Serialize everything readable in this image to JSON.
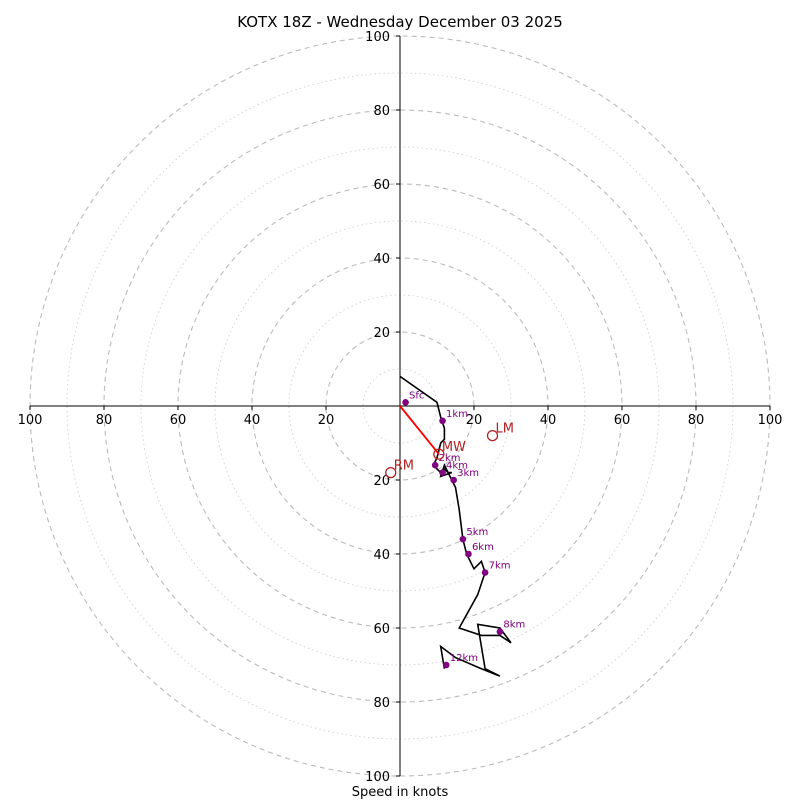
{
  "chart_data": {
    "type": "hodograph",
    "title": "KOTX 18Z - Wednesday December 03 2025",
    "xlabel": "Speed in knots",
    "range": [
      -100,
      100
    ],
    "ring_major_step": 20,
    "ring_minor_step": 10,
    "axis_ticks": {
      "right": [
        "20",
        "40",
        "60",
        "80",
        "100"
      ],
      "left": [
        "20",
        "40",
        "60",
        "80",
        "100"
      ],
      "up": [
        "20",
        "40",
        "60",
        "80",
        "100"
      ],
      "down": [
        "20",
        "40",
        "60",
        "80",
        "100"
      ]
    },
    "colors": {
      "trace": "#000000",
      "height_marker": "#800080",
      "storm_motion": "#b22222",
      "mean_wind_vector": "#ff0000",
      "ring": "#bbbbbb",
      "axis": "#000000"
    },
    "hodograph_trace": [
      [
        0,
        8
      ],
      [
        10,
        1
      ],
      [
        11,
        -3
      ],
      [
        12,
        -6
      ],
      [
        12,
        -9
      ],
      [
        11,
        -10
      ],
      [
        10,
        -14
      ],
      [
        9,
        -16
      ],
      [
        10,
        -17
      ],
      [
        11,
        -18
      ],
      [
        12,
        -17
      ],
      [
        13,
        -18
      ],
      [
        14,
        -18
      ],
      [
        11,
        -19
      ],
      [
        12,
        -16
      ],
      [
        14,
        -20
      ],
      [
        15,
        -22
      ],
      [
        16,
        -28
      ],
      [
        17,
        -36
      ],
      [
        18,
        -40
      ],
      [
        20,
        -44
      ],
      [
        22,
        -42
      ],
      [
        23,
        -45
      ],
      [
        21,
        -51
      ],
      [
        16,
        -60
      ],
      [
        22,
        -62
      ],
      [
        27,
        -62
      ],
      [
        30,
        -64
      ],
      [
        27,
        -60
      ],
      [
        21,
        -59
      ],
      [
        23,
        -71
      ],
      [
        27,
        -73
      ],
      [
        22,
        -71
      ],
      [
        15,
        -68
      ],
      [
        11,
        -65
      ],
      [
        12,
        -71
      ]
    ],
    "height_markers": [
      {
        "label": "Sfc",
        "u": 1.5,
        "v": 1
      },
      {
        "label": "1km",
        "u": 11.5,
        "v": -4
      },
      {
        "label": "2km",
        "u": 9.5,
        "v": -16
      },
      {
        "label": "4km",
        "u": 11.5,
        "v": -18
      },
      {
        "label": "3km",
        "u": 14.5,
        "v": -20
      },
      {
        "label": "5km",
        "u": 17,
        "v": -36
      },
      {
        "label": "6km",
        "u": 18.5,
        "v": -40
      },
      {
        "label": "7km",
        "u": 23,
        "v": -45
      },
      {
        "label": "8km",
        "u": 27,
        "v": -61
      },
      {
        "label": "12km",
        "u": 12.5,
        "v": -70
      }
    ],
    "storm_motion": [
      {
        "label": "LM",
        "u": 25,
        "v": -8
      },
      {
        "label": "RM",
        "u": -2.5,
        "v": -18
      },
      {
        "label": "MW",
        "u": 10.5,
        "v": -13
      }
    ],
    "mean_wind_vector": {
      "from": [
        0,
        0
      ],
      "to": [
        10.5,
        -13
      ]
    }
  }
}
